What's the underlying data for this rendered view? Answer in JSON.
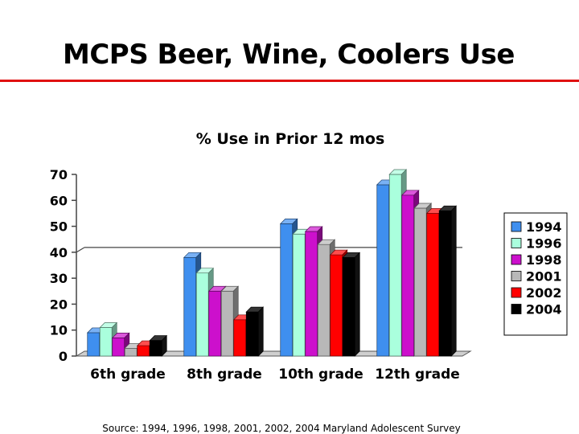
{
  "slide": {
    "title": "MCPS Beer, Wine, Coolers Use",
    "accent_color": "#e01010",
    "source": "Source: 1994, 1996, 1998, 2001, 2002, 2004 Maryland Adolescent Survey"
  },
  "chart_data": {
    "type": "bar",
    "title": "% Use in Prior 12 mos",
    "xlabel": "",
    "ylabel": "",
    "categories": [
      "6th grade",
      "8th grade",
      "10th grade",
      "12th grade"
    ],
    "ylim": [
      0,
      70
    ],
    "yticks": [
      0,
      10,
      20,
      30,
      40,
      50,
      60,
      70
    ],
    "gridlines": [
      40
    ],
    "legend_position": "right",
    "style": "3d-bars",
    "series": [
      {
        "name": "1994",
        "color": "#3f8fef",
        "values": [
          9,
          38,
          51,
          66
        ]
      },
      {
        "name": "1996",
        "color": "#aaffdd",
        "values": [
          11,
          32,
          47,
          70
        ]
      },
      {
        "name": "1998",
        "color": "#cc10cc",
        "values": [
          7,
          25,
          48,
          62
        ]
      },
      {
        "name": "2001",
        "color": "#b8b8b8",
        "values": [
          3,
          25,
          43,
          57
        ]
      },
      {
        "name": "2002",
        "color": "#ff0000",
        "values": [
          4,
          14,
          39,
          55
        ]
      },
      {
        "name": "2004",
        "color": "#000000",
        "values": [
          6,
          17,
          38,
          56
        ]
      }
    ]
  }
}
